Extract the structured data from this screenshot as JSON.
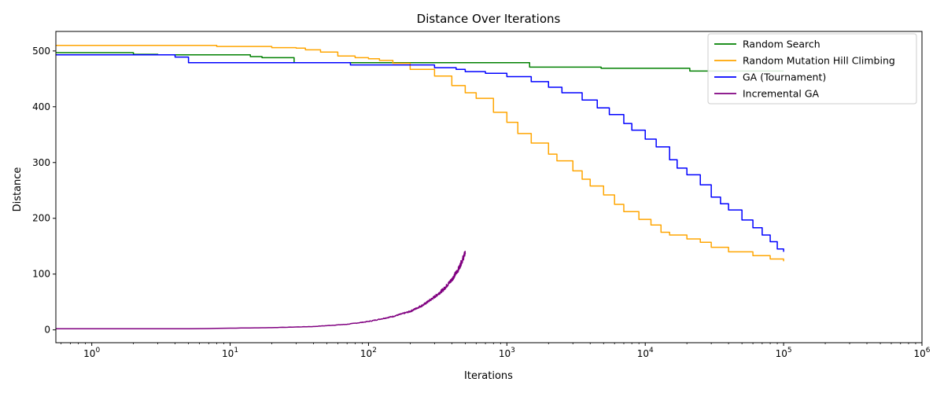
{
  "chart_data": {
    "type": "line",
    "title": "Distance Over Iterations",
    "xlabel": "Iterations",
    "ylabel": "Distance",
    "xscale": "log",
    "xlim": [
      0.55,
      1000000
    ],
    "ylim": [
      -23,
      535
    ],
    "x_ticks": [
      {
        "base": "10",
        "exp": "0",
        "value": 1
      },
      {
        "base": "10",
        "exp": "1",
        "value": 10
      },
      {
        "base": "10",
        "exp": "2",
        "value": 100
      },
      {
        "base": "10",
        "exp": "3",
        "value": 1000
      },
      {
        "base": "10",
        "exp": "4",
        "value": 10000
      },
      {
        "base": "10",
        "exp": "5",
        "value": 100000
      },
      {
        "base": "10",
        "exp": "6",
        "value": 1000000
      }
    ],
    "y_ticks": [
      {
        "label": "0",
        "value": 0
      },
      {
        "label": "100",
        "value": 100
      },
      {
        "label": "200",
        "value": 200
      },
      {
        "label": "300",
        "value": 300
      },
      {
        "label": "400",
        "value": 400
      },
      {
        "label": "500",
        "value": 500
      }
    ],
    "grid": false,
    "legend_position": "top-right",
    "series": [
      {
        "name": "Random Search",
        "color": "#008000",
        "step": true,
        "points": [
          [
            0.55,
            497
          ],
          [
            1,
            497
          ],
          [
            2,
            494
          ],
          [
            3,
            493
          ],
          [
            13,
            493
          ],
          [
            14,
            490
          ],
          [
            17,
            488
          ],
          [
            28,
            488
          ],
          [
            29,
            479
          ],
          [
            1450,
            479
          ],
          [
            1460,
            471
          ],
          [
            3500,
            471
          ],
          [
            4800,
            469
          ],
          [
            20000,
            469
          ],
          [
            21000,
            464
          ],
          [
            100000,
            464
          ]
        ]
      },
      {
        "name": "Random Mutation Hill Climbing",
        "color": "#FFA500",
        "step": true,
        "points": [
          [
            0.55,
            510
          ],
          [
            5,
            510
          ],
          [
            8,
            508
          ],
          [
            12,
            508
          ],
          [
            20,
            506
          ],
          [
            30,
            505
          ],
          [
            35,
            502
          ],
          [
            45,
            498
          ],
          [
            60,
            491
          ],
          [
            80,
            488
          ],
          [
            100,
            486
          ],
          [
            120,
            483
          ],
          [
            150,
            478
          ],
          [
            200,
            467
          ],
          [
            300,
            455
          ],
          [
            400,
            438
          ],
          [
            500,
            425
          ],
          [
            600,
            415
          ],
          [
            800,
            390
          ],
          [
            1000,
            372
          ],
          [
            1200,
            352
          ],
          [
            1500,
            335
          ],
          [
            2000,
            315
          ],
          [
            2300,
            303
          ],
          [
            3000,
            285
          ],
          [
            3500,
            270
          ],
          [
            4000,
            258
          ],
          [
            5000,
            242
          ],
          [
            6000,
            225
          ],
          [
            7000,
            212
          ],
          [
            9000,
            198
          ],
          [
            11000,
            188
          ],
          [
            13000,
            175
          ],
          [
            15000,
            170
          ],
          [
            20000,
            163
          ],
          [
            25000,
            157
          ],
          [
            30000,
            148
          ],
          [
            40000,
            140
          ],
          [
            60000,
            133
          ],
          [
            80000,
            127
          ],
          [
            100000,
            123
          ]
        ]
      },
      {
        "name": "GA (Tournament)",
        "color": "#0000FF",
        "step": true,
        "points": [
          [
            0.55,
            493
          ],
          [
            3,
            493
          ],
          [
            4,
            489
          ],
          [
            5,
            479
          ],
          [
            73,
            479
          ],
          [
            74,
            475
          ],
          [
            180,
            475
          ],
          [
            300,
            470
          ],
          [
            430,
            467
          ],
          [
            500,
            463
          ],
          [
            700,
            460
          ],
          [
            1000,
            454
          ],
          [
            1500,
            445
          ],
          [
            2000,
            435
          ],
          [
            2500,
            425
          ],
          [
            3500,
            412
          ],
          [
            4500,
            398
          ],
          [
            5500,
            386
          ],
          [
            7000,
            370
          ],
          [
            8000,
            358
          ],
          [
            10000,
            342
          ],
          [
            12000,
            328
          ],
          [
            15000,
            305
          ],
          [
            17000,
            290
          ],
          [
            20000,
            278
          ],
          [
            25000,
            260
          ],
          [
            30000,
            238
          ],
          [
            35000,
            226
          ],
          [
            40000,
            215
          ],
          [
            50000,
            197
          ],
          [
            60000,
            183
          ],
          [
            70000,
            170
          ],
          [
            80000,
            158
          ],
          [
            90000,
            145
          ],
          [
            100000,
            140
          ]
        ]
      },
      {
        "name": "Incremental GA",
        "color": "#800080",
        "step": false,
        "noise": true,
        "points": [
          [
            0.55,
            2
          ],
          [
            5,
            2
          ],
          [
            10,
            3
          ],
          [
            20,
            4
          ],
          [
            40,
            6
          ],
          [
            70,
            10
          ],
          [
            100,
            15
          ],
          [
            150,
            24
          ],
          [
            200,
            33
          ],
          [
            250,
            45
          ],
          [
            300,
            59
          ],
          [
            350,
            73
          ],
          [
            400,
            90
          ],
          [
            450,
            110
          ],
          [
            500,
            138
          ]
        ]
      }
    ]
  }
}
